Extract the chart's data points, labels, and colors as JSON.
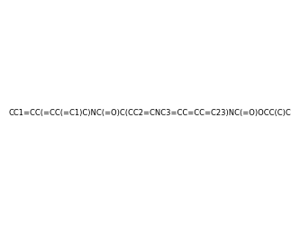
{
  "smiles": "CC1=CC(=CC(=C1)C)NC(=O)C(CC2=CNC3=CC=CC=C23)NC(=O)OCC(C)C",
  "image_size": 300,
  "background_color": "#f0f0f0",
  "bond_color": "#1a1a1a",
  "atom_colors": {
    "N": "#0000ff",
    "O": "#ff0000",
    "C": "#1a1a1a",
    "H": "#1a1a1a"
  }
}
